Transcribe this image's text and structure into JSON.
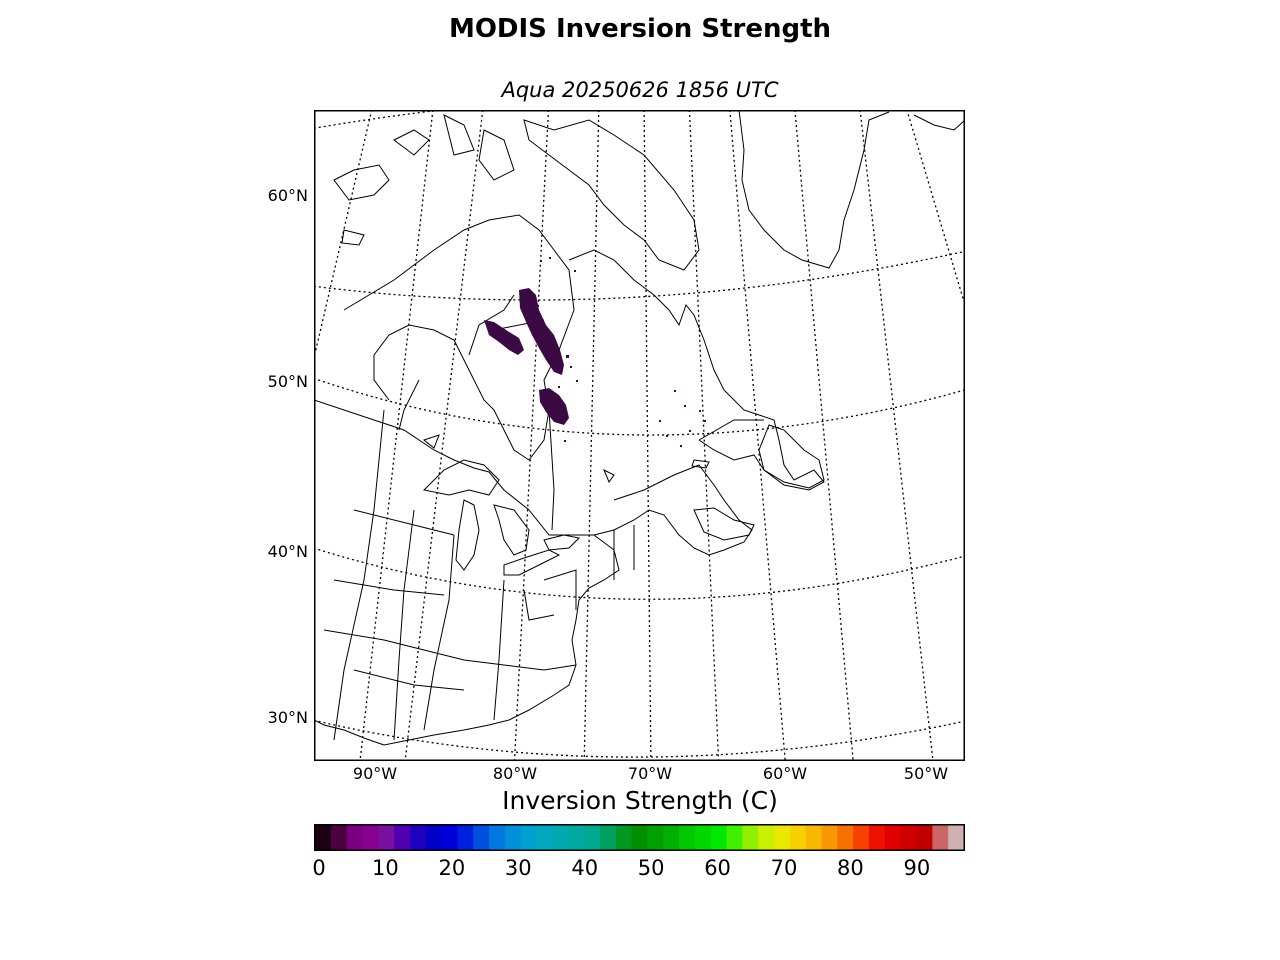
{
  "title": "MODIS Inversion Strength",
  "subtitle": "Aqua 20250626 1856 UTC",
  "map": {
    "lat_labels": [
      "60°N",
      "50°N",
      "40°N",
      "30°N"
    ],
    "lon_labels": [
      "90°W",
      "80°W",
      "70°W",
      "60°W",
      "50°W"
    ],
    "land_color": "#ffffff",
    "coast_color": "#000000",
    "feature_color": "#3b0a45",
    "features": [
      "inversion-patch-james-bay",
      "inversion-patch-abitibi",
      "inversion-speckles-quebec",
      "inversion-speckles-labrador"
    ]
  },
  "colorbar": {
    "label": "Inversion Strength (C)",
    "ticks": [
      "0",
      "10",
      "20",
      "30",
      "40",
      "50",
      "60",
      "70",
      "80",
      "90"
    ],
    "range": [
      0,
      98
    ],
    "colors": [
      "#1a0010",
      "#4b0040",
      "#7a0080",
      "#8a0090",
      "#7a10a0",
      "#5000b0",
      "#2000c0",
      "#0000c8",
      "#0000d8",
      "#0020e0",
      "#0050e0",
      "#0078e0",
      "#0090d8",
      "#00a0d0",
      "#00a8c0",
      "#00a8b0",
      "#00a8a0",
      "#00a890",
      "#00a060",
      "#009820",
      "#009000",
      "#00a000",
      "#00b000",
      "#00c800",
      "#00d800",
      "#00e800",
      "#40f000",
      "#90f000",
      "#c8f000",
      "#e8e800",
      "#f8d000",
      "#f8b800",
      "#f89800",
      "#f87000",
      "#f84000",
      "#f01000",
      "#e00000",
      "#d00000",
      "#c00000",
      "#cc6666",
      "#d0b0b0"
    ]
  }
}
